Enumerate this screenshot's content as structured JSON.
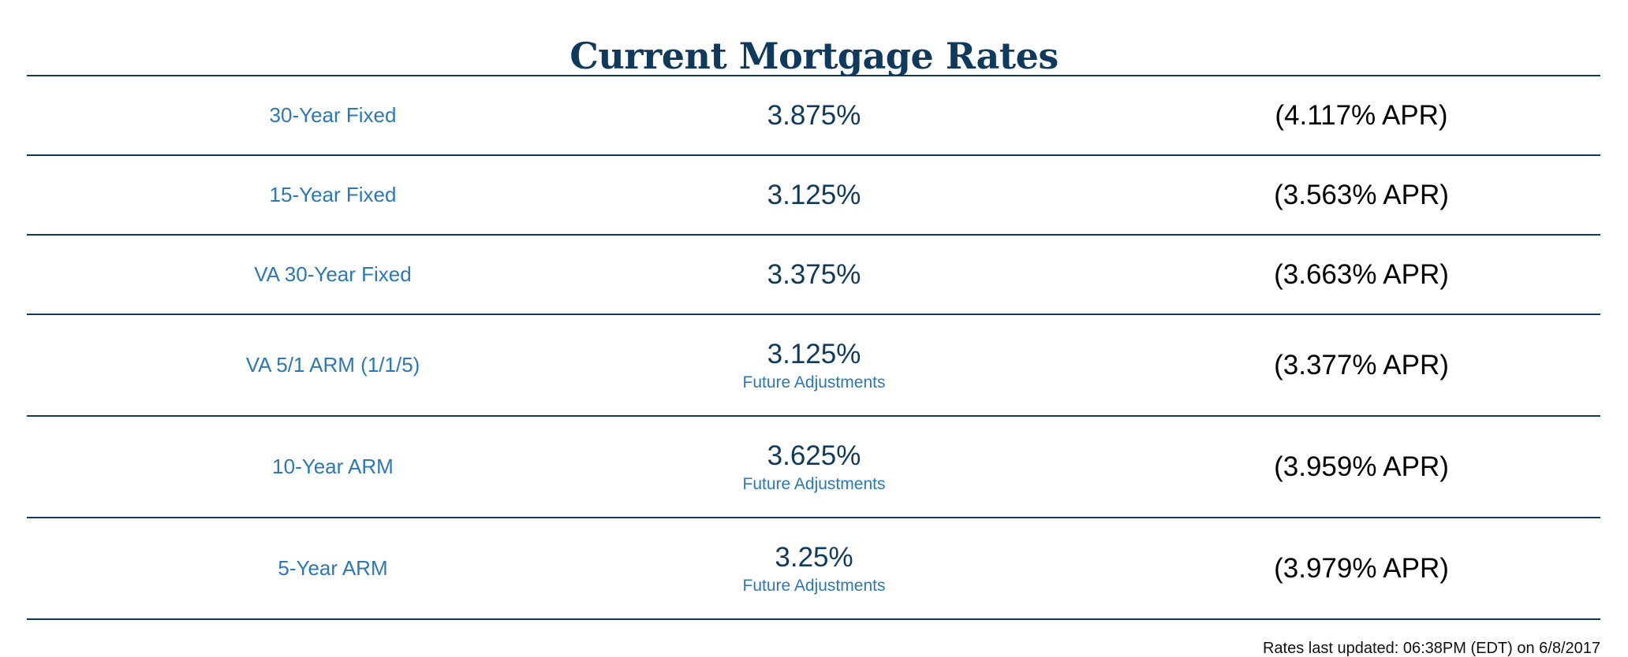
{
  "title": "Current Mortgage Rates",
  "rows": [
    {
      "product": "30-Year Fixed",
      "rate": "3.875%",
      "adjustments": "",
      "apr": "(4.117% APR)"
    },
    {
      "product": "15-Year Fixed",
      "rate": "3.125%",
      "adjustments": "",
      "apr": "(3.563% APR)"
    },
    {
      "product": "VA 30-Year Fixed",
      "rate": "3.375%",
      "adjustments": "",
      "apr": "(3.663% APR)"
    },
    {
      "product": "VA 5/1 ARM (1/1/5)",
      "rate": "3.125%",
      "adjustments": "Future Adjustments",
      "apr": "(3.377% APR)"
    },
    {
      "product": "10-Year ARM",
      "rate": "3.625%",
      "adjustments": "Future Adjustments",
      "apr": "(3.959% APR)"
    },
    {
      "product": "5-Year ARM",
      "rate": "3.25%",
      "adjustments": "Future Adjustments",
      "apr": "(3.979% APR)"
    }
  ],
  "footer": {
    "updated": "Rates last updated: 06:38PM (EDT) on 6/8/2017"
  },
  "colors": {
    "title": "#0f3a5e",
    "link": "#2b78b9",
    "rate": "#0f3a5e",
    "apr": "#000000",
    "divider": "#0f3a5e"
  }
}
